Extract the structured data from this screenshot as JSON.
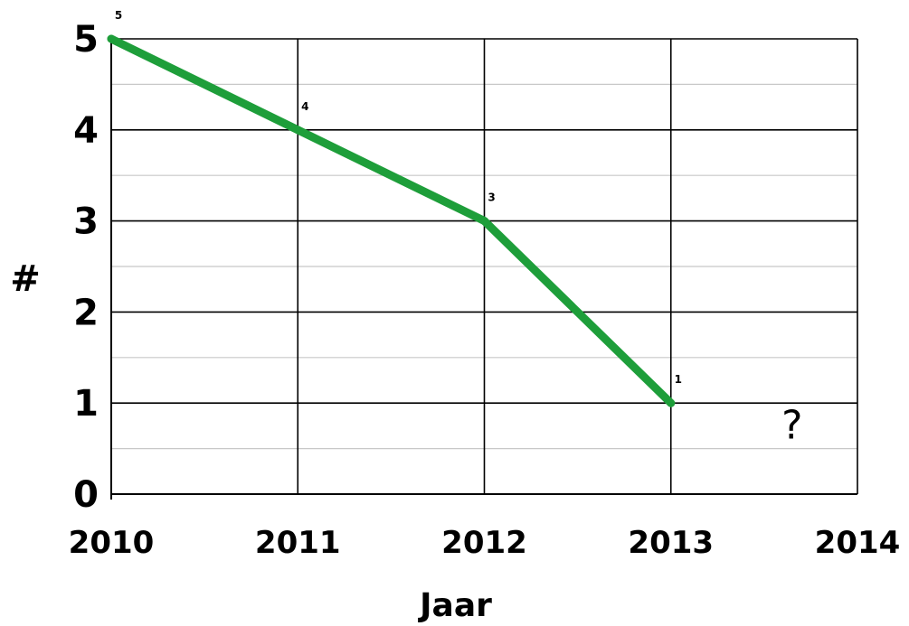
{
  "chart_data": {
    "type": "line",
    "title": "",
    "xlabel": "Jaar",
    "ylabel": "#",
    "x": [
      2010,
      2011,
      2012,
      2013
    ],
    "x_ticks": [
      "2010",
      "2011",
      "2012",
      "2013",
      "2014"
    ],
    "y_ticks": [
      "0",
      "1",
      "2",
      "3",
      "4",
      "5"
    ],
    "xlim": [
      2010,
      2014
    ],
    "ylim": [
      0,
      5
    ],
    "grid": true,
    "minor_grid_y": true,
    "series": [
      {
        "values": [
          5,
          4,
          3,
          1
        ],
        "data_labels": [
          "5",
          "4",
          "3",
          "1"
        ],
        "color": "#1e9e3a"
      }
    ],
    "annotation": {
      "text": "?",
      "x": 2013.65,
      "y": 0.75
    }
  }
}
